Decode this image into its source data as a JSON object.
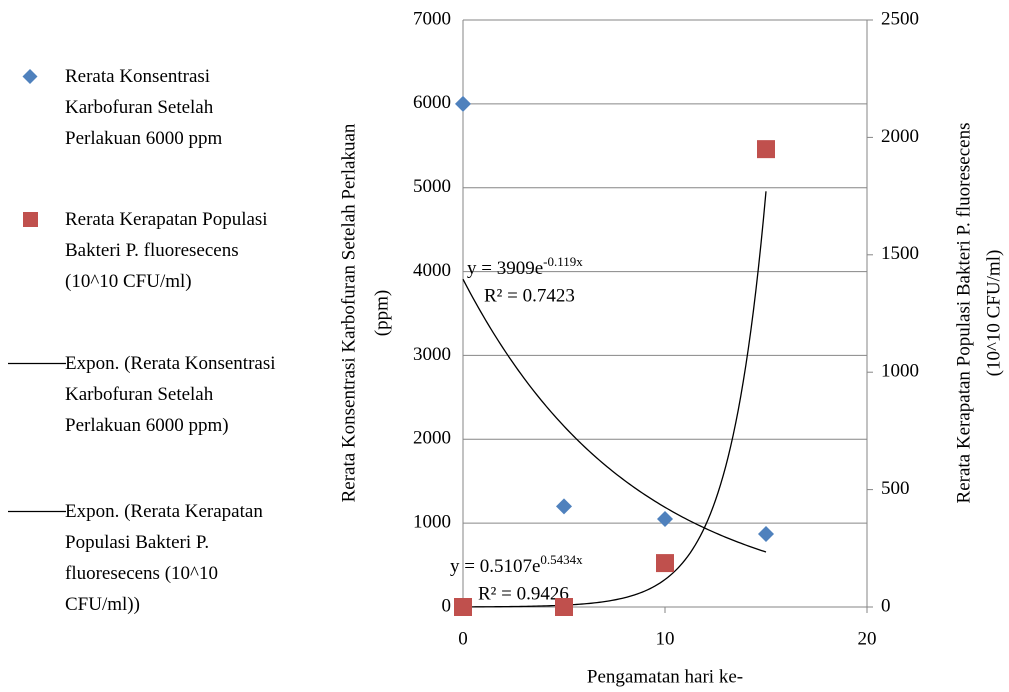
{
  "chart_data": {
    "type": "scatter",
    "xlabel": "Pengamatan hari ke-",
    "ylabel": [
      "Rerata Konsentrasi Karbofuran Setelah Perlakuan",
      "(ppm)"
    ],
    "y2label": [
      "Rerata Kerapatan Populasi Bakteri P. fluoresecens",
      "(10^10 CFU/ml)"
    ],
    "xlim": [
      0,
      20
    ],
    "xticks": [
      0,
      10,
      20
    ],
    "ylim": [
      0,
      7000
    ],
    "yticks": [
      0,
      1000,
      2000,
      3000,
      4000,
      5000,
      6000,
      7000
    ],
    "y2lim": [
      0,
      2500
    ],
    "y2ticks": [
      0,
      500,
      1000,
      1500,
      2000,
      2500
    ],
    "grid": true,
    "legend": "left",
    "series": [
      {
        "name": "Rerata Konsentrasi Karbofuran Setelah Perlakuan 6000 ppm",
        "color": "#4f81bd",
        "marker": "diamond",
        "axis": "y",
        "x": [
          0,
          5,
          10,
          15
        ],
        "values": [
          6000,
          1200,
          1050,
          870
        ]
      },
      {
        "name": "Rerata Kerapatan Populasi Bakteri P. fluoresecens (10^10 CFU/ml)",
        "color": "#c0504d",
        "marker": "square",
        "axis": "y2",
        "x": [
          0,
          5,
          10,
          15
        ],
        "values": [
          0,
          0,
          187,
          1950
        ]
      }
    ],
    "trendlines": [
      {
        "name": "Expon. (Rerata Konsentrasi Karbofuran Setelah Perlakuan 6000 ppm)",
        "axis": "y",
        "a": 3909,
        "b": -0.119,
        "xrange": [
          0,
          15
        ],
        "equation": "y = 3909e",
        "exponent": "-0.119x",
        "r2": "R² = 0.7423"
      },
      {
        "name": "Expon. (Rerata Kerapatan Populasi Bakteri P. fluoresecens (10^10 CFU/ml))",
        "axis": "y2",
        "a": 0.5107,
        "b": 0.5434,
        "xrange": [
          0,
          15
        ],
        "equation": "y = 0.5107e",
        "exponent": "0.5434x",
        "r2": "R² = 0.9426"
      }
    ]
  }
}
